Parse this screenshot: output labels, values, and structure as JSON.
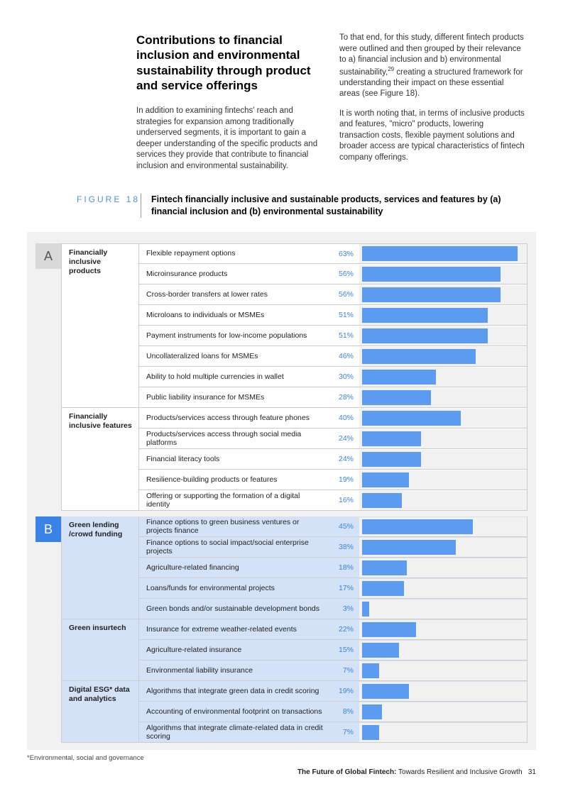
{
  "header": {
    "title": "Contributions to financial inclusion and environmental sustainability through product and service offerings",
    "left_para": "In addition to examining fintechs' reach and strategies for expansion among traditionally underserved segments, it is important to gain a deeper understanding of the specific products and services they provide that contribute to financial inclusion and environmental sustainability.",
    "right_para1_a": "To that end, for this study, different fintech products were outlined and then grouped by their relevance to a) financial inclusion and b) environmental sustainability,",
    "right_para1_sup": "29",
    "right_para1_b": " creating a structured framework for understanding their impact on these essential areas (see Figure 18).",
    "right_para2": "It is worth noting that, in terms of inclusive products and features, \"micro\" products, lowering transaction costs, flexible payment solutions and broader access are typical characteristics of fintech company offerings."
  },
  "figure": {
    "label": "FIGURE 18",
    "title": "Fintech financially inclusive and sustainable products, services and features by (a) financial inclusion and (b) environmental sustainability"
  },
  "chart": {
    "bar_color": "#5b9bf0",
    "pct_color": "#3b82e6",
    "max_value": 65,
    "panels": [
      {
        "marker": "A",
        "marker_class": "a",
        "bg_class": "cat-a",
        "categories": [
          {
            "name": "Financially inclusive products",
            "items": [
              {
                "label": "Flexible repayment options",
                "value": 63
              },
              {
                "label": "Microinsurance products",
                "value": 56
              },
              {
                "label": "Cross-border transfers at lower rates",
                "value": 56
              },
              {
                "label": "Microloans to individuals or MSMEs",
                "value": 51
              },
              {
                "label": "Payment instruments for low-income populations",
                "value": 51
              },
              {
                "label": "Uncollateralized loans for MSMEs",
                "value": 46
              },
              {
                "label": "Ability to hold multiple currencies in wallet",
                "value": 30
              },
              {
                "label": "Public liability insurance for MSMEs",
                "value": 28
              }
            ]
          },
          {
            "name": "Financially inclusive features",
            "items": [
              {
                "label": "Products/services access through feature phones",
                "value": 40
              },
              {
                "label": "Products/services access through social media platforms",
                "value": 24
              },
              {
                "label": "Financial literacy tools",
                "value": 24
              },
              {
                "label": "Resilience-building products or features",
                "value": 19
              },
              {
                "label": "Offering or supporting the formation of a digital identity",
                "value": 16
              }
            ]
          }
        ]
      },
      {
        "marker": "B",
        "marker_class": "b",
        "bg_class": "cat-b",
        "categories": [
          {
            "name": "Green lending /crowd funding",
            "items": [
              {
                "label": "Finance options to green business ventures or projects finance",
                "value": 45
              },
              {
                "label": "Finance options to social impact/social enterprise projects",
                "value": 38
              },
              {
                "label": "Agriculture-related financing",
                "value": 18
              },
              {
                "label": "Loans/funds for environmental projects",
                "value": 17
              },
              {
                "label": "Green bonds and/or sustainable development bonds",
                "value": 3
              }
            ]
          },
          {
            "name": "Green insurtech",
            "items": [
              {
                "label": "Insurance for extreme weather-related events",
                "value": 22
              },
              {
                "label": "Agriculture-related insurance",
                "value": 15
              },
              {
                "label": "Environmental liability insurance",
                "value": 7
              }
            ]
          },
          {
            "name": "Digital ESG* data and analytics",
            "items": [
              {
                "label": "Algorithms that integrate green data in credit scoring",
                "value": 19
              },
              {
                "label": "Accounting of environmental footprint on transactions",
                "value": 8
              },
              {
                "label": "Algorithms that integrate climate-related data in credit scoring",
                "value": 7
              }
            ]
          }
        ]
      }
    ]
  },
  "footnote": "*Environmental, social and governance",
  "footer": {
    "bold": "The Future of Global Fintech:",
    "rest": " Towards Resilient and Inclusive Growth",
    "page": "31"
  }
}
